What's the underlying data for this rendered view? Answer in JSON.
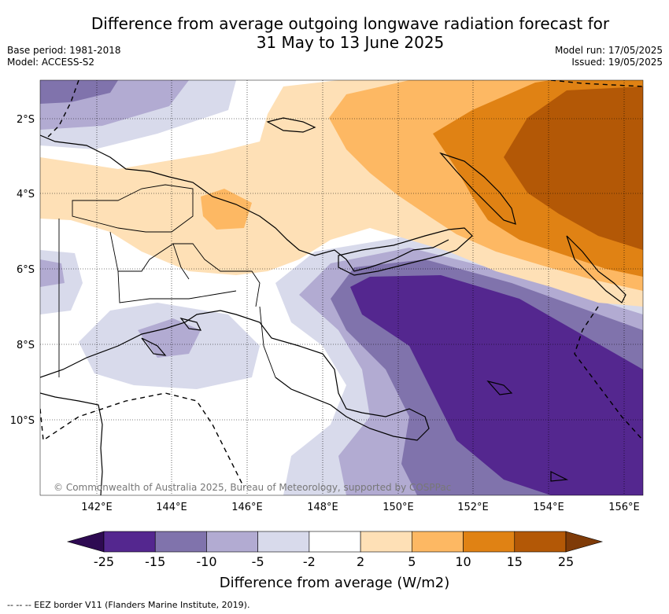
{
  "header": {
    "title_line1": "Difference from average outgoing longwave radiation forecast for",
    "title_line2": "31 May to 13 June 2025",
    "base_period": "Base period: 1981-2018",
    "model": "Model: ACCESS-S2",
    "model_run": "Model run: 17/05/2025",
    "issued": "Issued: 19/05/2025"
  },
  "map": {
    "latitude_labels": [
      "2°S",
      "4°S",
      "6°S",
      "8°S",
      "10°S"
    ],
    "longitude_labels": [
      "142°E",
      "144°E",
      "146°E",
      "148°E",
      "150°E",
      "152°E",
      "154°E",
      "156°E"
    ],
    "copyright": "© Commonwealth of Australia 2025, Bureau of Meteorology, supported by COSPPac"
  },
  "colorbar": {
    "labels": [
      "-25",
      "-15",
      "-10",
      "-5",
      "-2",
      "2",
      "5",
      "10",
      "15",
      "25"
    ],
    "colors": [
      "#2e0a52",
      "#54278f",
      "#8073ac",
      "#b2abd2",
      "#d8daeb",
      "#ffffff",
      "#fee0b6",
      "#fdb863",
      "#e08214",
      "#b35806",
      "#7f3b08"
    ],
    "title": "Difference from average (W/m2)"
  },
  "footnote": "-- -- -- EEZ border V11 (Flanders Marine Institute, 2019)."
}
